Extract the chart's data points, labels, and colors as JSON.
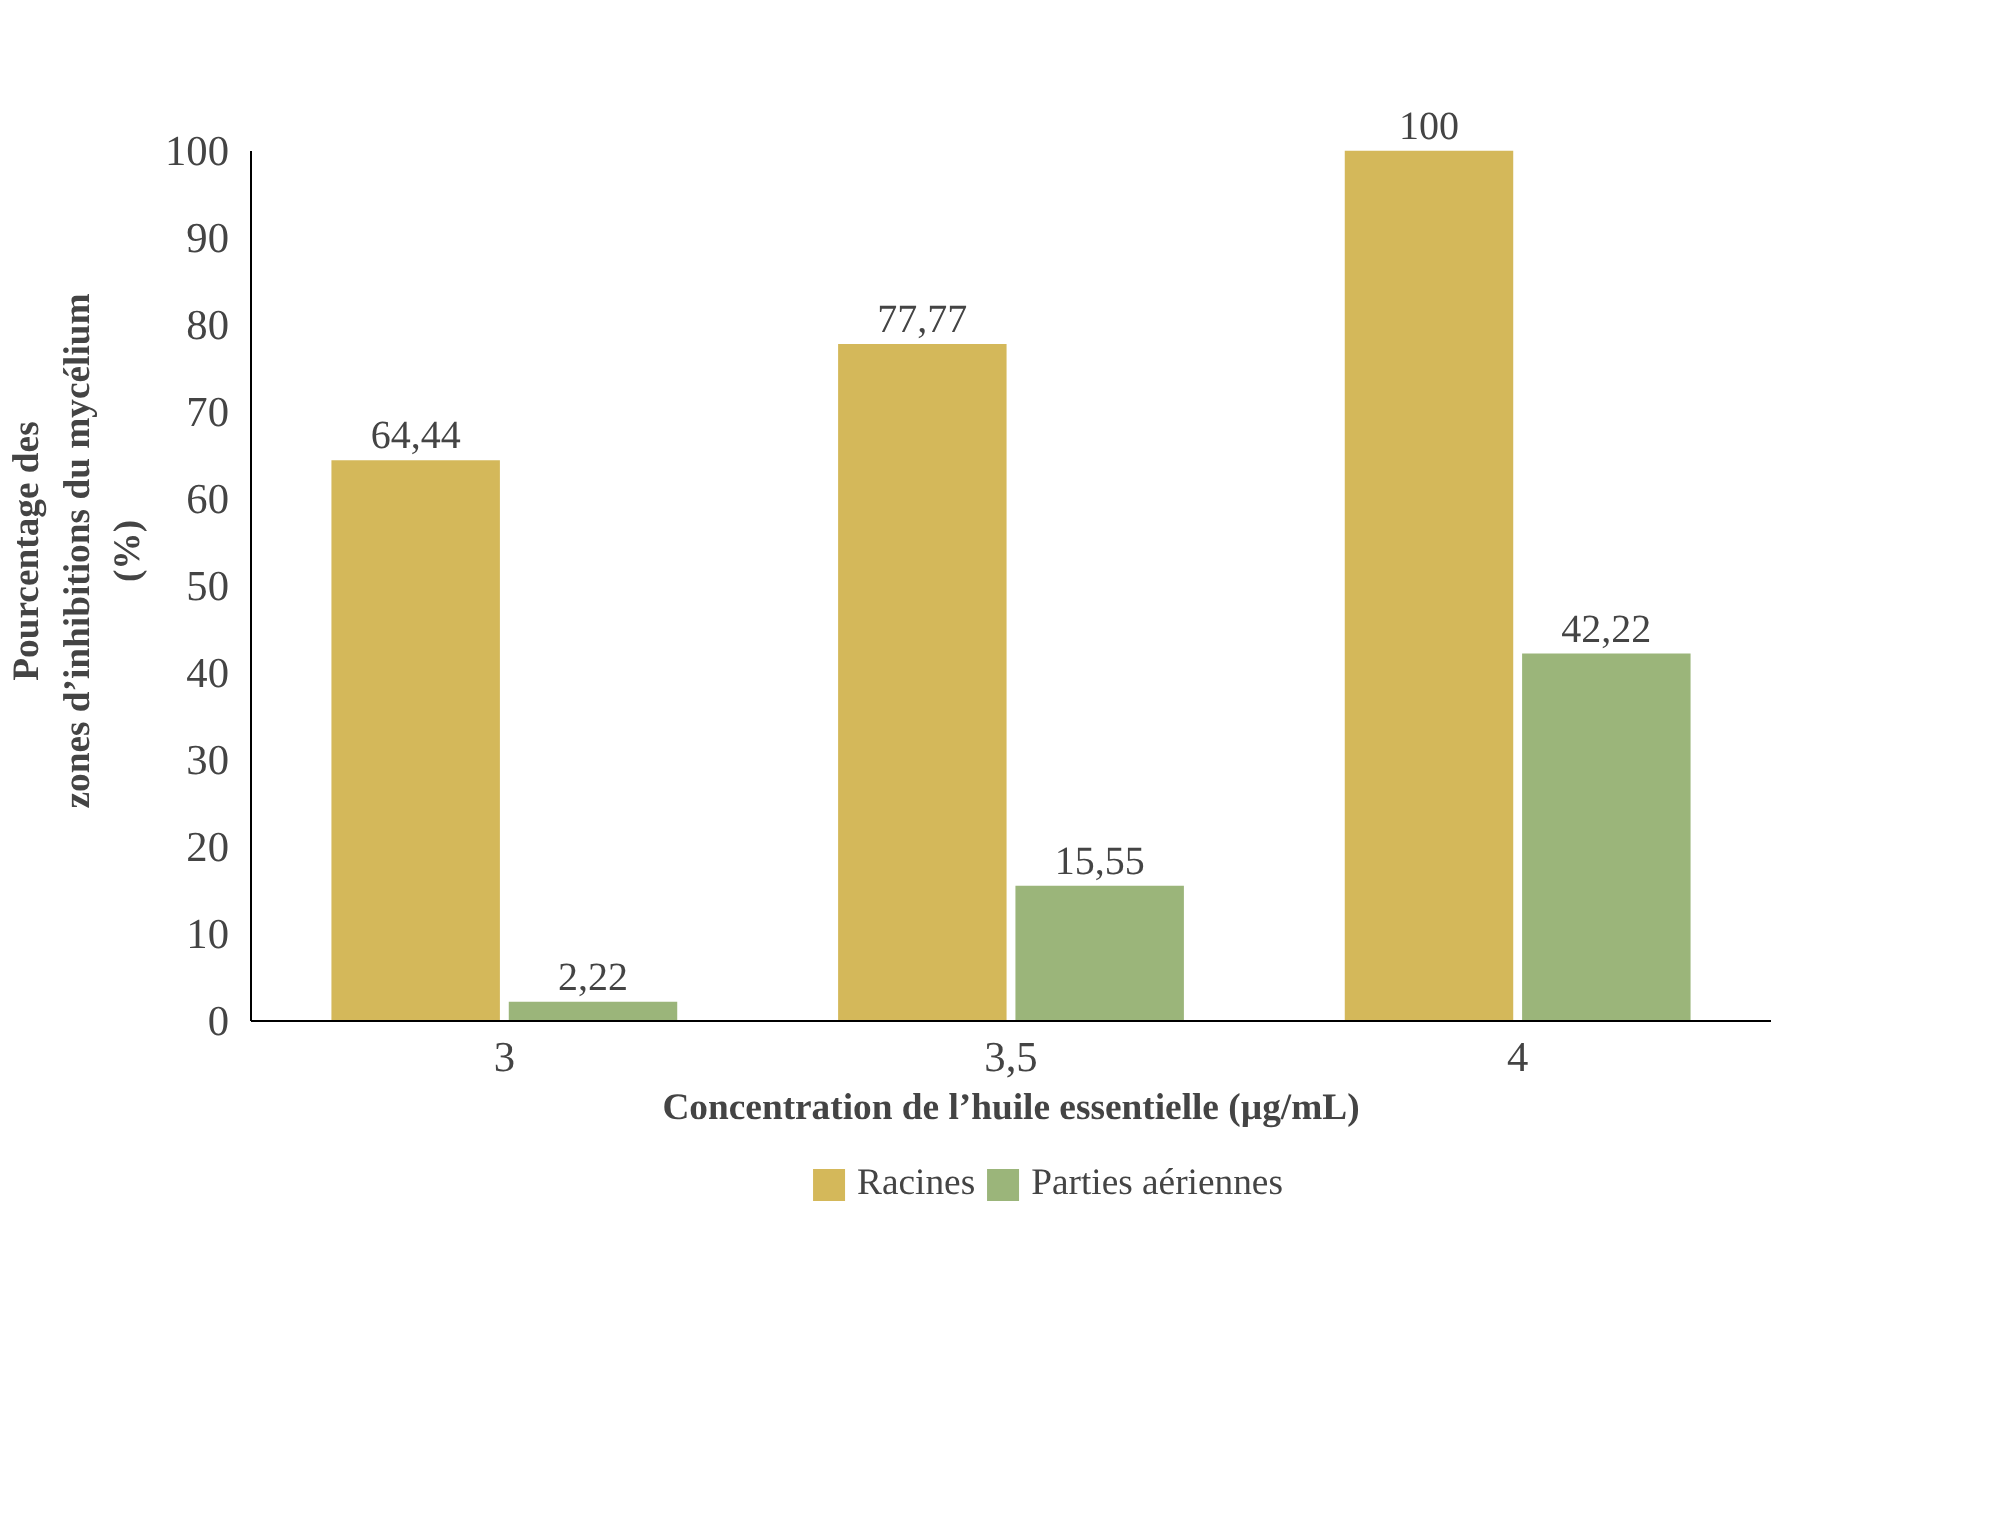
{
  "chart_data": {
    "type": "bar",
    "xlabel": "Concentration de l’huile essentielle (µg/mL)",
    "ylabel": "Pourcentage des\nzones d’inhibitions du mycélium\n(%)",
    "categories": [
      "3",
      "3,5",
      "4"
    ],
    "series": [
      {
        "name": "Racines",
        "color": "#d4b85a",
        "values": [
          64.44,
          77.77,
          100
        ],
        "value_labels": [
          "64,44",
          "77,77",
          "100"
        ]
      },
      {
        "name": "Parties aériennes",
        "color": "#9bb57a",
        "values": [
          2.22,
          15.55,
          42.22
        ],
        "value_labels": [
          "2,22",
          "15,55",
          "42,22"
        ]
      }
    ],
    "ylim": [
      0,
      100
    ],
    "yticks": [
      0,
      10,
      20,
      30,
      40,
      50,
      60,
      70,
      80,
      90,
      100
    ],
    "legend": "bottom",
    "grid": false
  }
}
